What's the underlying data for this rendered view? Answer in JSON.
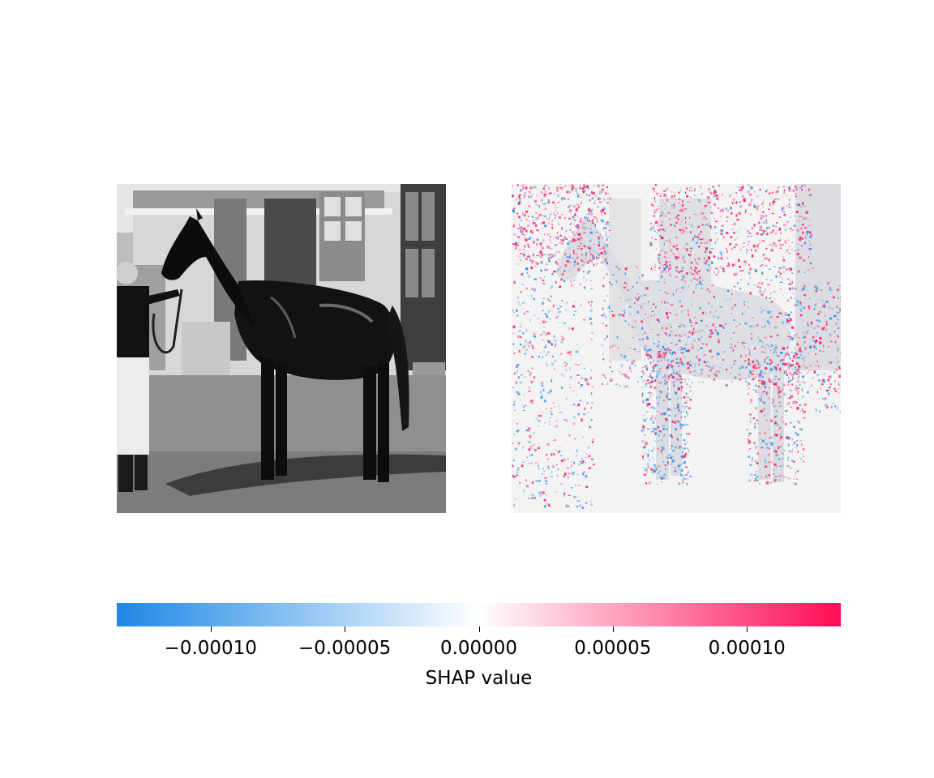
{
  "chart_data": {
    "type": "heatmap",
    "description_panels": [
      "grayscale input image",
      "SHAP attribution overlay"
    ],
    "colorbar": {
      "label": "SHAP value",
      "range": [
        -0.000135,
        0.000135
      ],
      "colors": {
        "negative": "#1E88E5",
        "neutral": "#ffffff",
        "positive": "#FF0D57"
      },
      "ticks": [
        -0.0001,
        -5e-05,
        0.0,
        5e-05,
        0.0001
      ],
      "tick_labels": [
        "−0.00010",
        "−0.00005",
        "0.00000",
        "0.00005",
        "0.00010"
      ]
    }
  },
  "panels": {
    "left": {
      "icon": "horse-photo-grayscale"
    },
    "right": {
      "icon": "shap-heatmap-overlay"
    }
  }
}
